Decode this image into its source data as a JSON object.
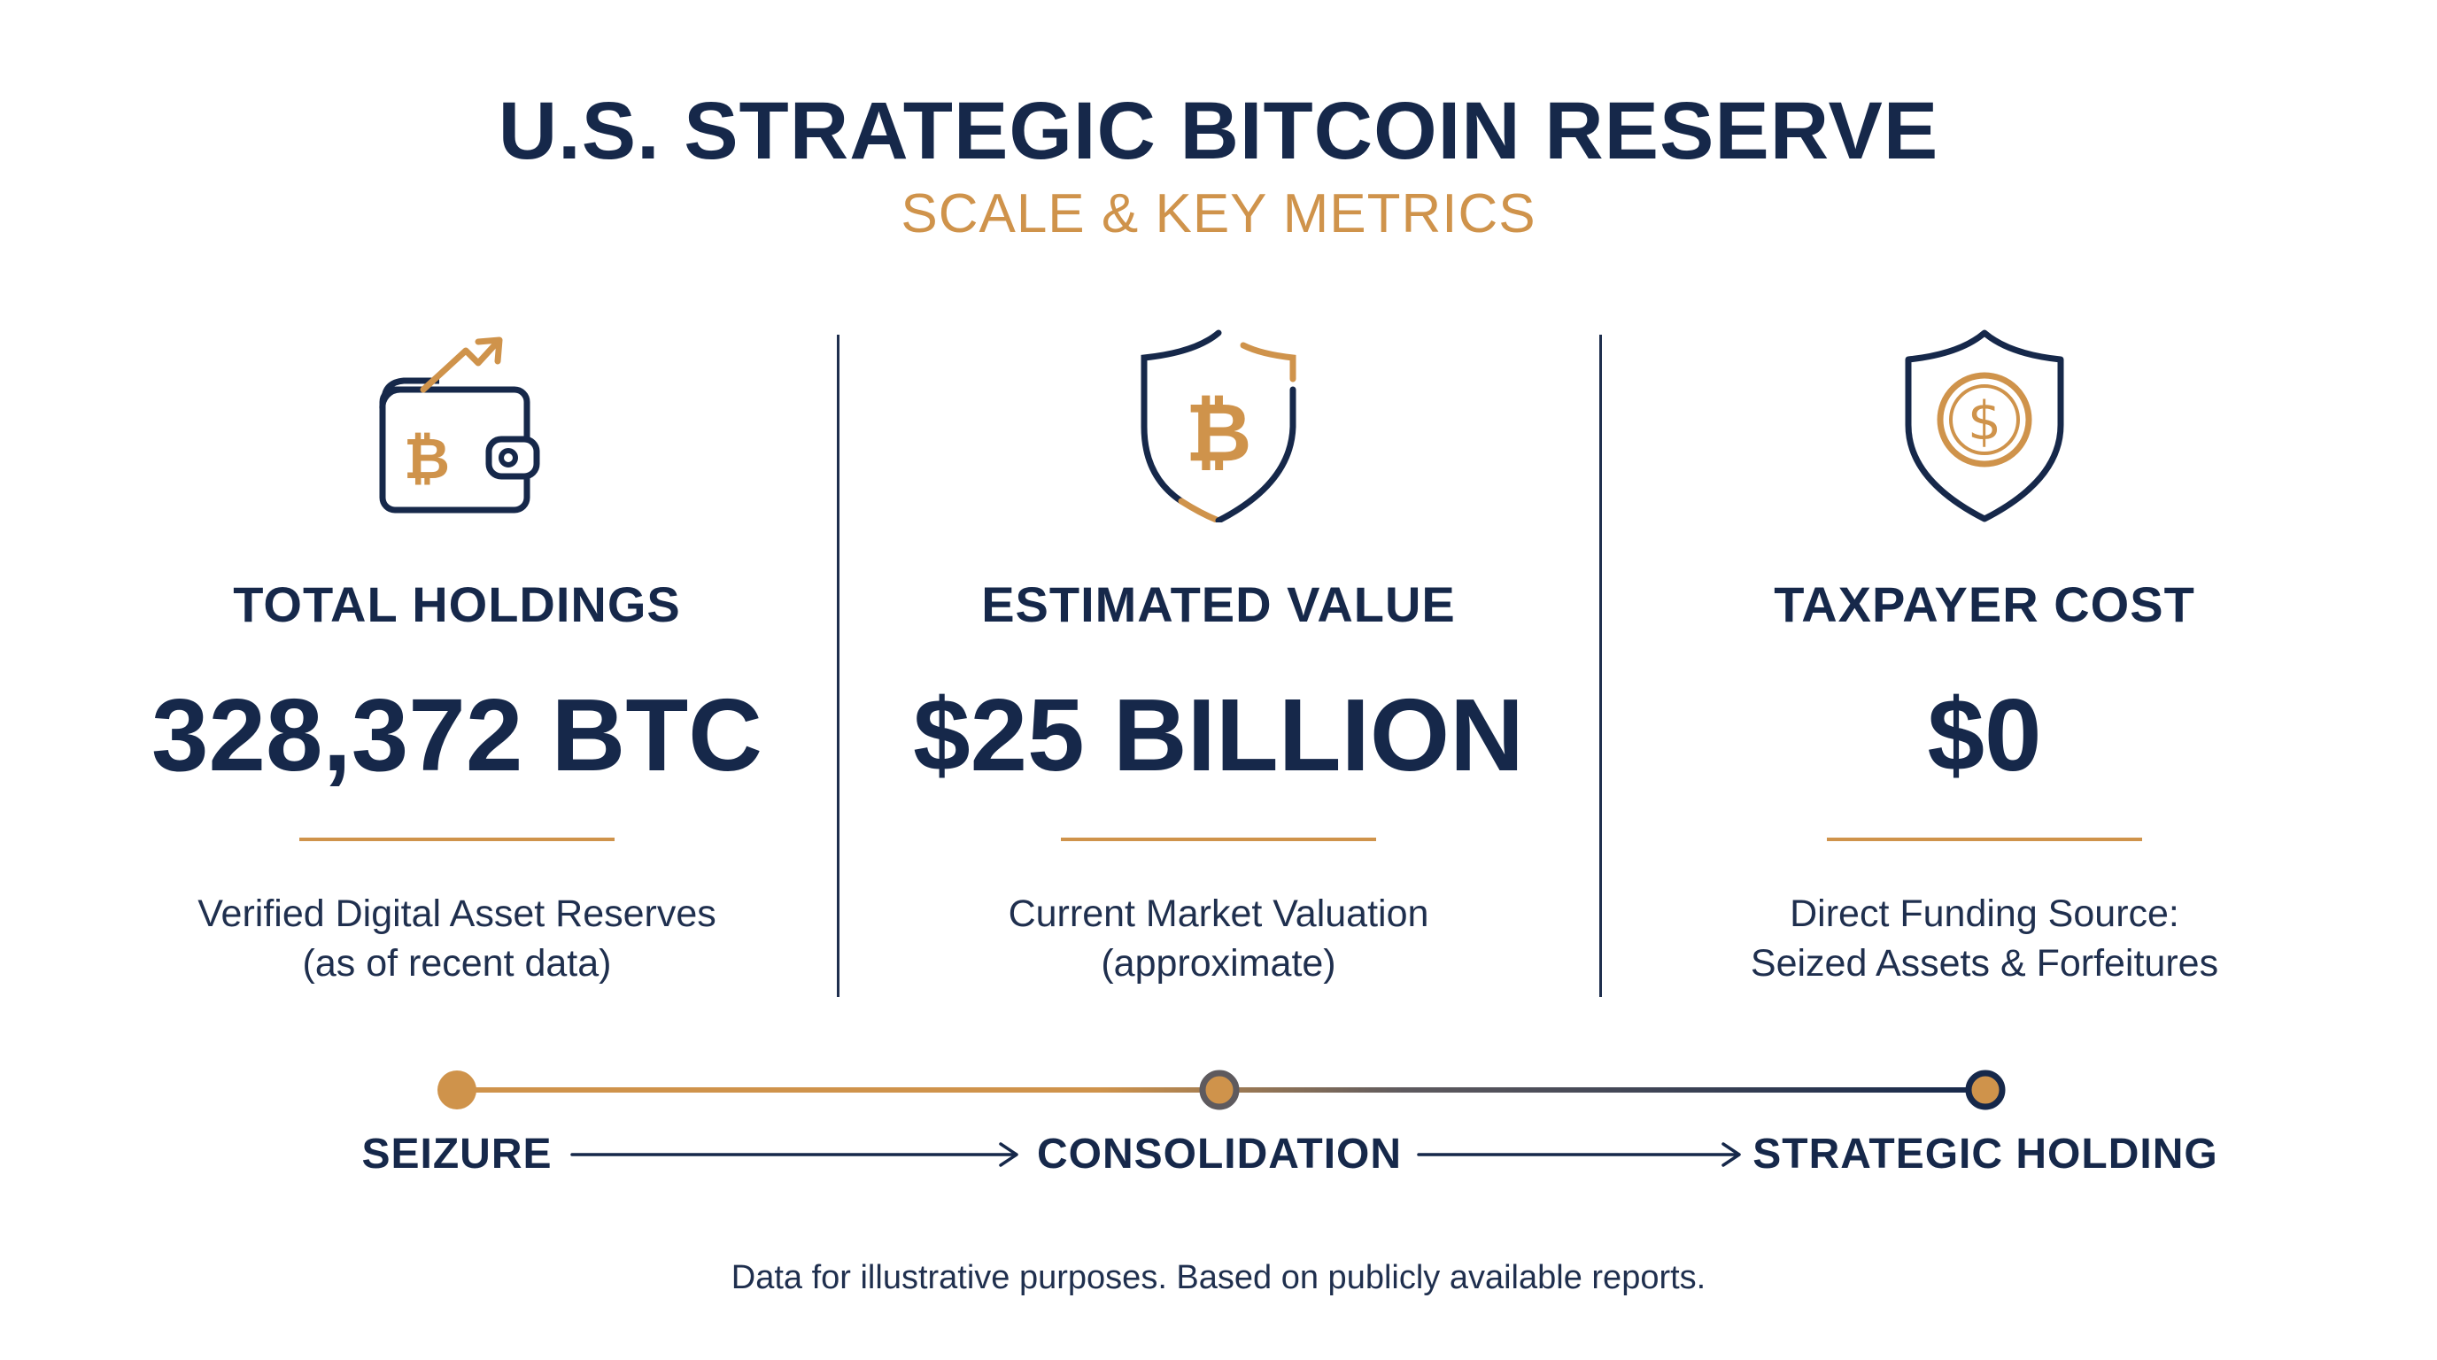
{
  "header": {
    "title": "U.S. STRATEGIC BITCOIN RESERVE",
    "subtitle": "SCALE & KEY METRICS"
  },
  "metrics": [
    {
      "icon": "bitcoin-wallet-growth-icon",
      "label": "TOTAL HOLDINGS",
      "value": "328,372 BTC",
      "desc_line1": "Verified Digital Asset Reserves",
      "desc_line2": "(as of recent data)"
    },
    {
      "icon": "bitcoin-shield-icon",
      "label": "ESTIMATED VALUE",
      "value": "$25 BILLION",
      "desc_line1": "Current Market Valuation",
      "desc_line2": "(approximate)"
    },
    {
      "icon": "dollar-shield-icon",
      "label": "TAXPAYER COST",
      "value": "$0",
      "desc_line1": "Direct Funding Source:",
      "desc_line2": "Seized Assets & Forfeitures"
    }
  ],
  "timeline": {
    "stages": [
      "SEIZURE",
      "CONSOLIDATION",
      "STRATEGIC HOLDING"
    ]
  },
  "footnote": "Data for illustrative purposes. Based on publicly available reports.",
  "colors": {
    "navy": "#16284a",
    "gold": "#cf934b",
    "background": "#ffffff"
  }
}
